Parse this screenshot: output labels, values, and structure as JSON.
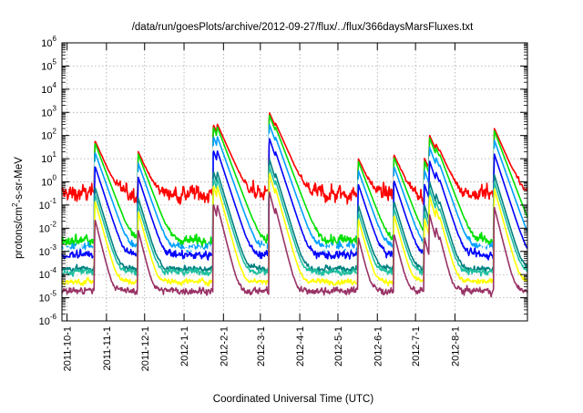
{
  "chart_data": {
    "type": "line",
    "title": "/data/run/goesPlots/archive/2012-09-27/flux/../flux/366daysMarsFluxes.txt",
    "xlabel": "Coordinated Universal Time (UTC)",
    "ylabel": {
      "before": "protons/cm",
      "sup": "2",
      "after": "-s-sr-MeV"
    },
    "yscale": "log",
    "ylim": [
      1e-06,
      1000000.0
    ],
    "y_ticks": [
      {
        "base": "10",
        "exp": "-6"
      },
      {
        "base": "10",
        "exp": "-5"
      },
      {
        "base": "10",
        "exp": "-4"
      },
      {
        "base": "10",
        "exp": "-3"
      },
      {
        "base": "10",
        "exp": "-2"
      },
      {
        "base": "10",
        "exp": "-1"
      },
      {
        "base": "10",
        "exp": "0"
      },
      {
        "base": "10",
        "exp": "1"
      },
      {
        "base": "10",
        "exp": "2"
      },
      {
        "base": "10",
        "exp": "3"
      },
      {
        "base": "10",
        "exp": "4"
      },
      {
        "base": "10",
        "exp": "5"
      },
      {
        "base": "10",
        "exp": "6"
      }
    ],
    "xlim": [
      "2011-09-27",
      "2012-09-27"
    ],
    "x_ticks": [
      "2011-10-1",
      "2011-11-1",
      "2011-12-1",
      "2012-1-1",
      "2012-2-1",
      "2012-3-1",
      "2012-4-1",
      "2012-5-1",
      "2012-6-1",
      "2012-7-1",
      "2012-8-1"
    ],
    "grid": true,
    "legend": "none",
    "events": [
      {
        "date": "2011-10-23",
        "peak_red": 60
      },
      {
        "date": "2011-11-26",
        "peak_red": 20
      },
      {
        "date": "2012-01-24",
        "peak_red": 300
      },
      {
        "date": "2012-01-27",
        "peak_red": 200
      },
      {
        "date": "2012-03-08",
        "peak_red": 1000
      },
      {
        "date": "2012-03-13",
        "peak_red": 100
      },
      {
        "date": "2012-05-17",
        "peak_red": 10
      },
      {
        "date": "2012-06-14",
        "peak_red": 15
      },
      {
        "date": "2012-07-08",
        "peak_red": 10
      },
      {
        "date": "2012-07-12",
        "peak_red": 100
      },
      {
        "date": "2012-07-17",
        "peak_red": 20
      },
      {
        "date": "2012-07-20",
        "peak_red": 5
      },
      {
        "date": "2012-09-01",
        "peak_red": 200
      }
    ],
    "series": [
      {
        "color": "#ff0000",
        "baseline": 0.3,
        "noise_decades": 0.55,
        "peak_offset_decades": 0,
        "decay_days": 3.5
      },
      {
        "color": "#00e000",
        "baseline": 0.003,
        "noise_decades": 0.35,
        "peak_offset_decades": 0.1,
        "decay_days": 3.0
      },
      {
        "color": "#00a0ff",
        "baseline": 0.0015,
        "noise_decades": 0.3,
        "peak_offset_decades": 0.5,
        "decay_days": 2.8
      },
      {
        "color": "#ffffff",
        "baseline": 0.0012,
        "noise_decades": 0.25,
        "peak_offset_decades": 0.9,
        "decay_days": 2.6
      },
      {
        "color": "#0000ff",
        "baseline": 0.0007,
        "noise_decades": 0.28,
        "peak_offset_decades": 1.1,
        "decay_days": 2.6
      },
      {
        "color": "#008080",
        "baseline": 0.00018,
        "noise_decades": 0.2,
        "peak_offset_decades": 2.0,
        "decay_days": 2.4
      },
      {
        "color": "#20c0a0",
        "baseline": 0.00013,
        "noise_decades": 0.2,
        "peak_offset_decades": 2.3,
        "decay_days": 2.4
      },
      {
        "color": "#ffff00",
        "baseline": 5e-05,
        "noise_decades": 0.18,
        "peak_offset_decades": 2.6,
        "decay_days": 2.2
      },
      {
        "color": "#993366",
        "baseline": 2e-05,
        "noise_decades": 0.22,
        "peak_offset_decades": 3.4,
        "decay_days": 2.0
      }
    ]
  }
}
